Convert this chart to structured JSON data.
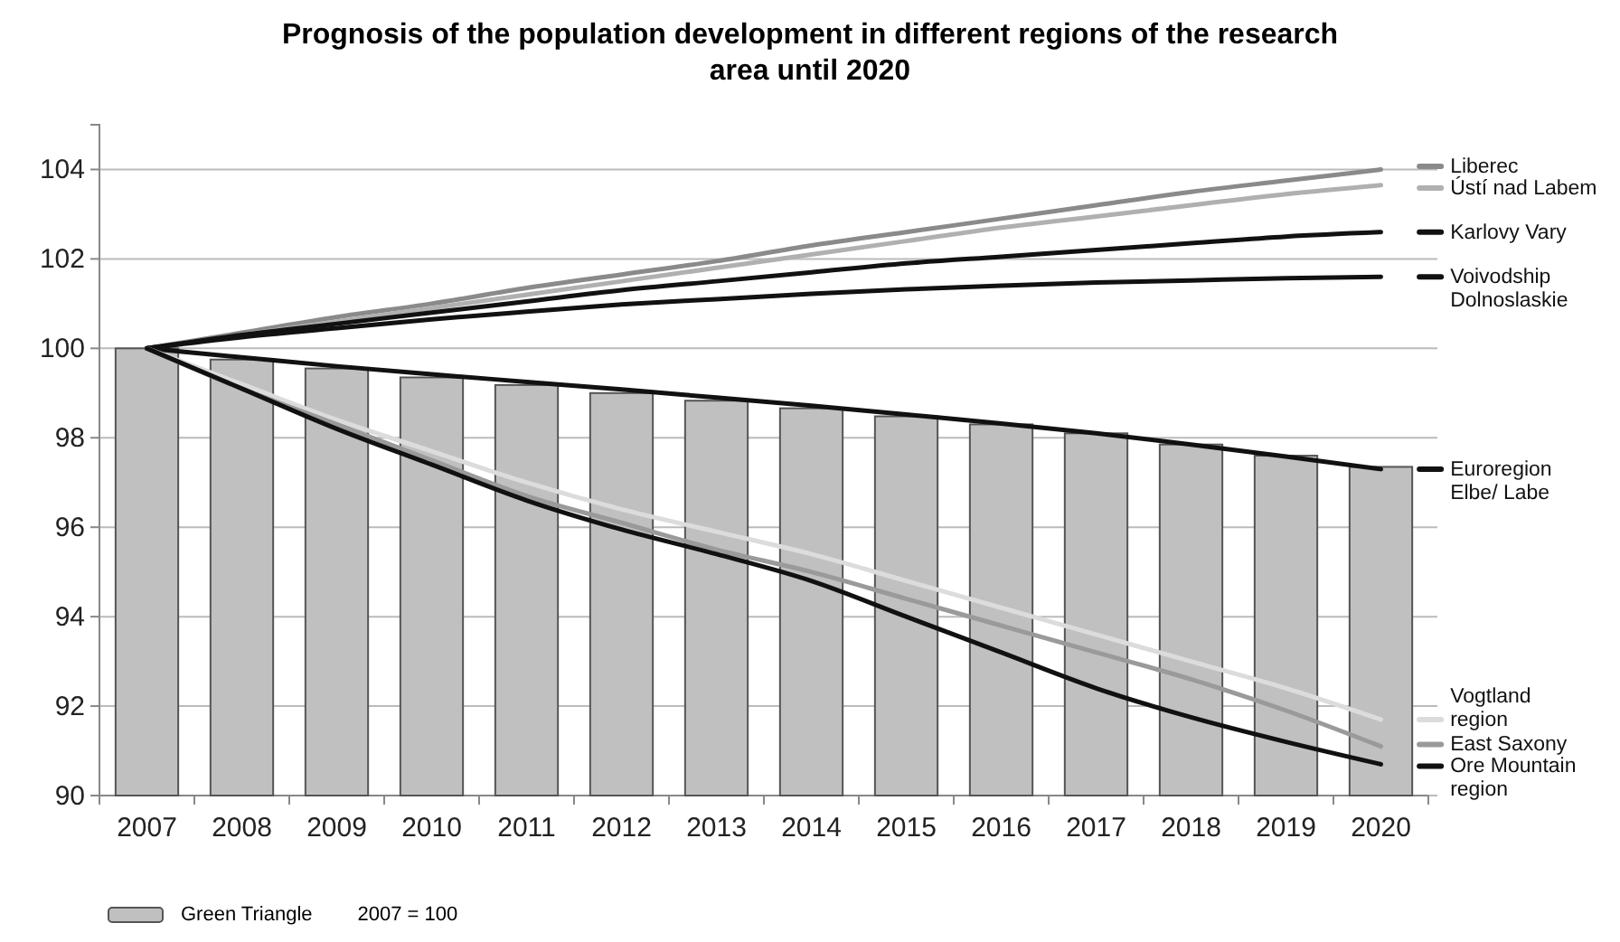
{
  "chart_data": {
    "type": "bar",
    "title": "Prognosis of the population development in different regions of the research area until 2020",
    "categories": [
      "2007",
      "2008",
      "2009",
      "2010",
      "2011",
      "2012",
      "2013",
      "2014",
      "2015",
      "2016",
      "2017",
      "2018",
      "2019",
      "2020"
    ],
    "ylim": [
      90,
      105
    ],
    "yticks": [
      90,
      92,
      94,
      96,
      98,
      100,
      102,
      104
    ],
    "grid": "y",
    "legend": "bottom",
    "annotations": [
      "2007 = 100"
    ],
    "series": [
      {
        "name": "Green Triangle",
        "color": "#c0c0c0",
        "values": [
          100,
          99.75,
          99.55,
          99.35,
          99.18,
          99.0,
          98.83,
          98.66,
          98.48,
          98.3,
          98.1,
          97.85,
          97.6,
          97.35
        ]
      },
      {
        "name": "Liberec",
        "type": "line",
        "color": "#8a8a8a",
        "values": [
          100,
          100.35,
          100.7,
          101.0,
          101.35,
          101.65,
          101.95,
          102.3,
          102.6,
          102.9,
          103.2,
          103.5,
          103.75,
          104.0
        ]
      },
      {
        "name": "Ústí nad Labem",
        "type": "line",
        "color": "#b0b0b0",
        "values": [
          100,
          100.3,
          100.6,
          100.9,
          101.2,
          101.5,
          101.8,
          102.1,
          102.4,
          102.7,
          102.95,
          103.2,
          103.45,
          103.65
        ]
      },
      {
        "name": "Karlovy Vary",
        "type": "line",
        "color": "#111111",
        "values": [
          100,
          100.3,
          100.55,
          100.8,
          101.05,
          101.3,
          101.5,
          101.7,
          101.9,
          102.05,
          102.2,
          102.35,
          102.5,
          102.6
        ]
      },
      {
        "name": "Voivodship\nDolnoslaskie",
        "type": "line",
        "color": "#111111",
        "values": [
          100,
          100.25,
          100.45,
          100.65,
          100.82,
          100.98,
          101.1,
          101.22,
          101.32,
          101.4,
          101.47,
          101.52,
          101.57,
          101.6
        ]
      },
      {
        "name": "Euroregion\nElbe/ Labe",
        "type": "line",
        "color": "#111111",
        "values": [
          100,
          99.8,
          99.6,
          99.42,
          99.25,
          99.08,
          98.9,
          98.72,
          98.52,
          98.32,
          98.1,
          97.85,
          97.58,
          97.3
        ]
      },
      {
        "name": "Vogtland\nregion",
        "type": "line",
        "color": "#dcdcdc",
        "values": [
          100,
          99.2,
          98.4,
          97.7,
          97.0,
          96.4,
          95.9,
          95.4,
          94.8,
          94.2,
          93.6,
          93.0,
          92.4,
          91.7
        ]
      },
      {
        "name": "East Saxony",
        "type": "line",
        "color": "#9a9a9a",
        "values": [
          100,
          99.1,
          98.3,
          97.5,
          96.7,
          96.1,
          95.5,
          95.0,
          94.4,
          93.8,
          93.2,
          92.6,
          91.9,
          91.1
        ]
      },
      {
        "name": "Ore Mountain\nregion",
        "type": "line",
        "color": "#111111",
        "values": [
          100,
          99.1,
          98.2,
          97.4,
          96.6,
          95.95,
          95.4,
          94.8,
          94.0,
          93.2,
          92.4,
          91.75,
          91.2,
          90.7
        ]
      }
    ]
  }
}
